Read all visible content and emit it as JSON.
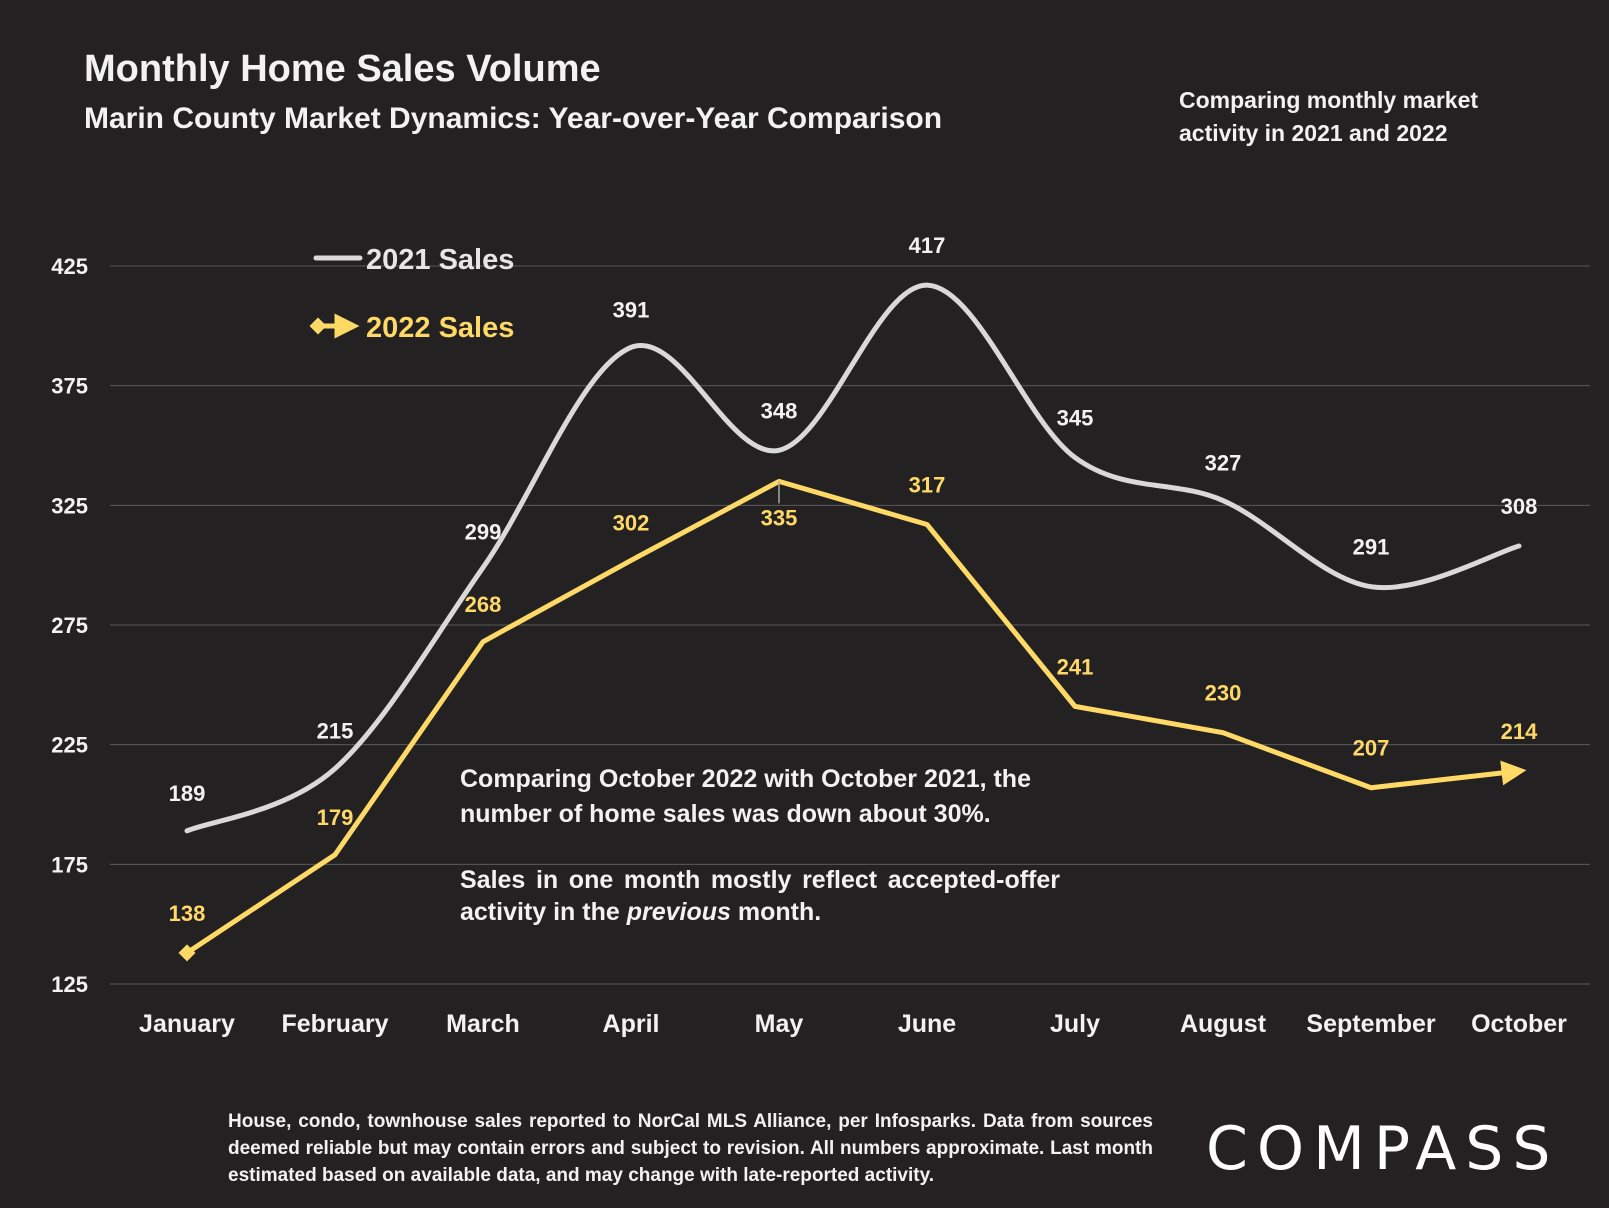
{
  "title": "Monthly Home Sales Volume",
  "subtitle": "Marin County Market Dynamics: Year-over-Year Comparison",
  "note_top": "Comparing monthly market activity in 2021 and 2022",
  "annotation": {
    "line1": "Comparing October 2022 with October 2021, the number of home sales was down about 30%.",
    "line2_pre": "Sales in one month mostly reflect accepted-offer activity in the ",
    "line2_em": "previous",
    "line2_post": " month."
  },
  "footer": "House, condo, townhouse sales reported to NorCal MLS Alliance, per Infosparks. Data from sources deemed reliable but may contain errors and subject to revision. All numbers approximate. Last month estimated based on available data, and may change with late-reported activity.",
  "logo": "COMPASS",
  "colors": {
    "background": "#232122",
    "series_2021": "#d9d9d9",
    "series_2022": "#ffd966",
    "gridline": "#595959"
  },
  "chart_data": {
    "type": "line",
    "categories": [
      "January",
      "February",
      "March",
      "April",
      "May",
      "June",
      "July",
      "August",
      "September",
      "October"
    ],
    "series": [
      {
        "name": "2021 Sales",
        "values": [
          189,
          215,
          299,
          391,
          348,
          417,
          345,
          327,
          291,
          308
        ],
        "color": "#d9d9d9",
        "smooth": true,
        "marker": "none"
      },
      {
        "name": "2022 Sales",
        "values": [
          138,
          179,
          268,
          302,
          335,
          317,
          241,
          230,
          207,
          214
        ],
        "color": "#ffd966",
        "smooth": false,
        "marker": "diamond-start-arrow-end"
      }
    ],
    "yticks": [
      125,
      175,
      225,
      275,
      325,
      375,
      425
    ],
    "ylim": [
      125,
      425
    ],
    "grid": true,
    "legend_position": "top-left"
  }
}
